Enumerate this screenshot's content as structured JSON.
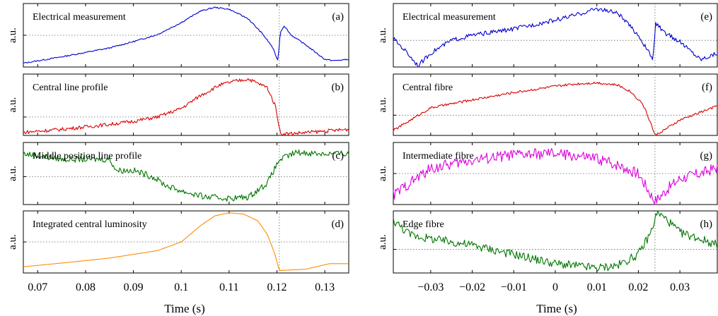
{
  "left_column": {
    "xlabel": "Time (s)",
    "xlim": [
      0.067,
      0.135
    ],
    "xticks": [
      0.07,
      0.08,
      0.09,
      0.1,
      0.11,
      0.12,
      0.13
    ],
    "xtick_labels": [
      "0.07",
      "0.08",
      "0.09",
      "0.1",
      "0.11",
      "0.12",
      "0.13"
    ],
    "event_x": 0.1205
  },
  "right_column": {
    "xlabel": "Time (s)",
    "xlim": [
      -0.039,
      0.039
    ],
    "xticks": [
      -0.03,
      -0.02,
      -0.01,
      0,
      0.01,
      0.02,
      0.03
    ],
    "xtick_labels": [
      "−0.03",
      "−0.02",
      "−0.01",
      "0",
      "0.01",
      "0.02",
      "0.03"
    ],
    "event_x": 0.024
  },
  "chart_data": [
    {
      "id": "a",
      "type": "line",
      "column": "left",
      "row": 0,
      "title": "Electrical measurement",
      "panel_label": "(a)",
      "ylabel": "a.u.",
      "color": "#0000cc",
      "ylim": [
        0,
        1
      ],
      "hline": 0.5,
      "noise": 0.01,
      "x": [
        0.067,
        0.075,
        0.085,
        0.09,
        0.095,
        0.1,
        0.104,
        0.107,
        0.11,
        0.114,
        0.117,
        0.119,
        0.1202,
        0.1207,
        0.1215,
        0.123,
        0.126,
        0.13,
        0.132,
        0.135
      ],
      "series": [
        {
          "values": [
            0.06,
            0.16,
            0.3,
            0.4,
            0.51,
            0.7,
            0.88,
            0.94,
            0.91,
            0.76,
            0.52,
            0.32,
            0.1,
            0.55,
            0.65,
            0.5,
            0.35,
            0.12,
            0.1,
            0.12
          ]
        }
      ]
    },
    {
      "id": "b",
      "type": "line",
      "column": "left",
      "row": 1,
      "title": "Central line profile",
      "panel_label": "(b)",
      "ylabel": "a.u.",
      "color": "#dd0000",
      "ylim": [
        0,
        1
      ],
      "hline": 0.3,
      "noise": 0.03,
      "x": [
        0.067,
        0.075,
        0.085,
        0.09,
        0.095,
        0.1,
        0.104,
        0.108,
        0.111,
        0.114,
        0.118,
        0.1198,
        0.1207,
        0.123,
        0.13,
        0.135
      ],
      "series": [
        {
          "values": [
            0.05,
            0.1,
            0.18,
            0.23,
            0.3,
            0.44,
            0.65,
            0.82,
            0.88,
            0.92,
            0.78,
            0.45,
            0.03,
            0.03,
            0.07,
            0.1
          ]
        }
      ]
    },
    {
      "id": "c",
      "type": "line",
      "column": "left",
      "row": 2,
      "title": "Middle position line profile",
      "panel_label": "(c)",
      "ylabel": "a.u.",
      "color": "#007700",
      "ylim": [
        0,
        1
      ],
      "hline": 0.45,
      "noise": 0.05,
      "x": [
        0.067,
        0.075,
        0.085,
        0.0865,
        0.09,
        0.094,
        0.097,
        0.1,
        0.105,
        0.11,
        0.114,
        0.118,
        0.1205,
        0.124,
        0.13,
        0.135
      ],
      "series": [
        {
          "values": [
            0.82,
            0.73,
            0.73,
            0.55,
            0.55,
            0.45,
            0.3,
            0.22,
            0.12,
            0.1,
            0.12,
            0.35,
            0.72,
            0.84,
            0.82,
            0.82
          ]
        }
      ]
    },
    {
      "id": "d",
      "type": "line",
      "column": "left",
      "row": 3,
      "title": "Integrated central luminosity",
      "panel_label": "(d)",
      "ylabel": "a.u.",
      "color": "#ff8c00",
      "ylim": [
        0,
        1
      ],
      "hline": 0.5,
      "noise": 0.0,
      "x": [
        0.067,
        0.075,
        0.085,
        0.095,
        0.1,
        0.104,
        0.107,
        0.11,
        0.113,
        0.116,
        0.118,
        0.1195,
        0.1205,
        0.126,
        0.131,
        0.135
      ],
      "series": [
        {
          "values": [
            0.1,
            0.16,
            0.24,
            0.36,
            0.5,
            0.76,
            0.92,
            0.97,
            0.95,
            0.84,
            0.62,
            0.32,
            0.04,
            0.06,
            0.15,
            0.15
          ]
        }
      ]
    },
    {
      "id": "e",
      "type": "line",
      "column": "right",
      "row": 0,
      "title": "Electrical measurement",
      "panel_label": "(e)",
      "ylabel": "a.u.",
      "color": "#0000cc",
      "ylim": [
        0,
        1
      ],
      "hline": 0.42,
      "noise": 0.035,
      "x": [
        -0.039,
        -0.036,
        -0.033,
        -0.03,
        -0.025,
        -0.02,
        -0.01,
        0,
        0.005,
        0.01,
        0.015,
        0.02,
        0.0235,
        0.0242,
        0.026,
        0.03,
        0.035,
        0.039
      ],
      "series": [
        {
          "values": [
            0.45,
            0.25,
            0.02,
            0.22,
            0.42,
            0.5,
            0.6,
            0.74,
            0.82,
            0.92,
            0.85,
            0.5,
            0.12,
            0.7,
            0.55,
            0.4,
            0.12,
            0.22
          ]
        }
      ]
    },
    {
      "id": "f",
      "type": "line",
      "column": "right",
      "row": 1,
      "title": "Central fibre",
      "panel_label": "(f)",
      "ylabel": "a.u.",
      "color": "#dd0000",
      "ylim": [
        0,
        1
      ],
      "hline": 0.33,
      "noise": 0.02,
      "x": [
        -0.039,
        -0.03,
        -0.02,
        -0.01,
        0,
        0.005,
        0.01,
        0.015,
        0.018,
        0.021,
        0.023,
        0.024,
        0.027,
        0.03,
        0.035,
        0.039
      ],
      "series": [
        {
          "values": [
            0.08,
            0.45,
            0.58,
            0.7,
            0.8,
            0.84,
            0.86,
            0.82,
            0.72,
            0.52,
            0.2,
            0.0,
            0.12,
            0.25,
            0.38,
            0.48
          ]
        }
      ]
    },
    {
      "id": "g",
      "type": "line",
      "column": "right",
      "row": 2,
      "title": "Intermediate fibre",
      "panel_label": "(g)",
      "ylabel": "a.u.",
      "color": "#dd00dd",
      "ylim": [
        0,
        1
      ],
      "hline": 0.5,
      "noise": 0.09,
      "x": [
        -0.039,
        -0.035,
        -0.03,
        -0.02,
        -0.01,
        0,
        0.01,
        0.015,
        0.02,
        0.024,
        0.027,
        0.03,
        0.035,
        0.039
      ],
      "series": [
        {
          "values": [
            0.15,
            0.35,
            0.58,
            0.72,
            0.8,
            0.82,
            0.74,
            0.64,
            0.5,
            0.05,
            0.25,
            0.42,
            0.5,
            0.6
          ]
        }
      ]
    },
    {
      "id": "h",
      "type": "line",
      "column": "right",
      "row": 3,
      "title": "Edge fibre",
      "panel_label": "(h)",
      "ylabel": "a.u.",
      "color": "#007700",
      "ylim": [
        0,
        1
      ],
      "hline": 0.38,
      "noise": 0.07,
      "x": [
        -0.039,
        -0.035,
        -0.03,
        -0.02,
        -0.01,
        0,
        0.01,
        0.015,
        0.02,
        0.023,
        0.0245,
        0.027,
        0.03,
        0.035,
        0.039
      ],
      "series": [
        {
          "values": [
            0.85,
            0.62,
            0.55,
            0.45,
            0.3,
            0.15,
            0.08,
            0.12,
            0.3,
            0.65,
            0.98,
            0.85,
            0.65,
            0.55,
            0.45
          ]
        }
      ]
    }
  ]
}
